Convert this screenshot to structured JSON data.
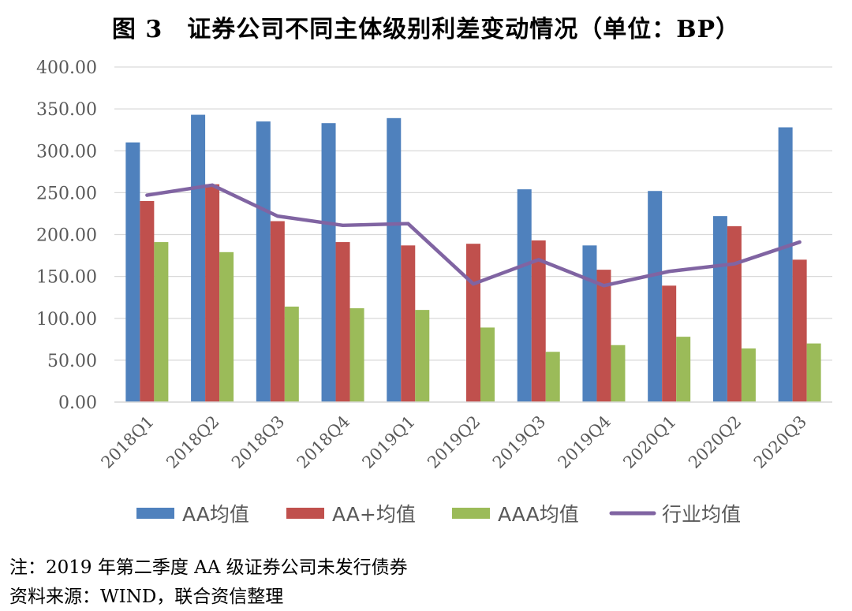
{
  "title": "图 3　证券公司不同主体级别利差变动情况（单位：BP）",
  "notes": {
    "note": "注：2019 年第二季度 AA 级证券公司未发行债券",
    "source": "资料来源：WIND，联合资信整理"
  },
  "colors": {
    "aa": "#4F81BD",
    "aa_plus": "#C0504D",
    "aaa": "#9BBB59",
    "industry": "#8064A2",
    "grid": "#D9D9D9",
    "axis_text": "#595959"
  },
  "chart_data": {
    "type": "bar",
    "title": "证券公司不同主体级别利差变动情况（单位：BP）",
    "xlabel": "",
    "ylabel": "",
    "ylim": [
      0,
      400
    ],
    "yticks": [
      "0.00",
      "50.00",
      "100.00",
      "150.00",
      "200.00",
      "250.00",
      "300.00",
      "350.00",
      "400.00"
    ],
    "grid": true,
    "legend_position": "bottom",
    "categories": [
      "2018Q1",
      "2018Q2",
      "2018Q3",
      "2018Q4",
      "2019Q1",
      "2019Q2",
      "2019Q3",
      "2019Q4",
      "2020Q1",
      "2020Q2",
      "2020Q3"
    ],
    "series": [
      {
        "name": "AA均值",
        "kind": "bar",
        "color": "#4F81BD",
        "values": [
          310,
          343,
          335,
          333,
          339,
          null,
          254,
          187,
          252,
          222,
          328
        ]
      },
      {
        "name": "AA+均值",
        "kind": "bar",
        "color": "#C0504D",
        "values": [
          240,
          260,
          216,
          191,
          187,
          189,
          193,
          158,
          139,
          210,
          170
        ]
      },
      {
        "name": "AAA均值",
        "kind": "bar",
        "color": "#9BBB59",
        "values": [
          191,
          179,
          114,
          112,
          110,
          89,
          60,
          68,
          78,
          64,
          70
        ]
      },
      {
        "name": "行业均值",
        "kind": "line",
        "color": "#8064A2",
        "values": [
          247,
          259,
          222,
          211,
          213,
          141,
          170,
          139,
          156,
          165,
          191
        ]
      }
    ]
  }
}
